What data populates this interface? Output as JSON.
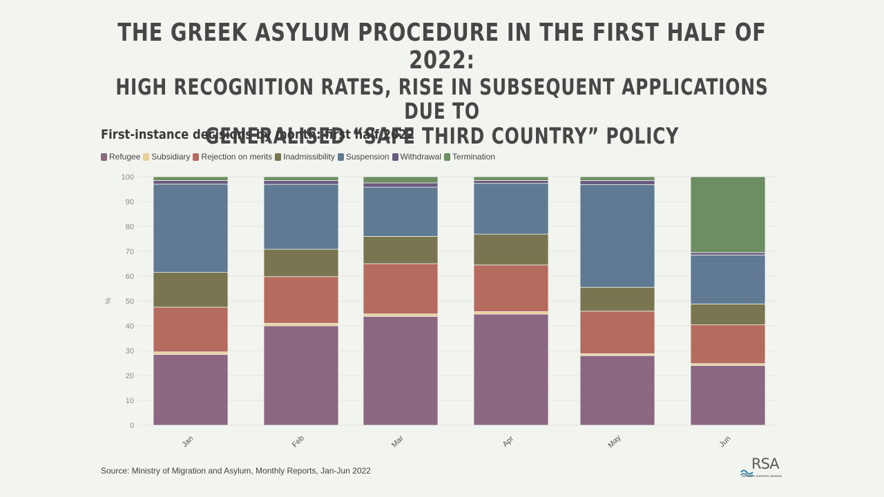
{
  "header": {
    "title_line1": "The Greek asylum procedure in the first half of 2022:",
    "title_line2": "High recognition rates, rise in subsequent applications due to",
    "title_line3": "generalised “safe third country” policy"
  },
  "source": "Source: Ministry of Migration and Asylum, Monthly Reports, Jan-Jun 2022",
  "logo": {
    "text": "RSA",
    "subtitle": "REFUGEE SUPPORT AEGEAN",
    "color": "#2f7fa3"
  },
  "chart_data": {
    "type": "bar",
    "stacked": true,
    "title": "First-instance decisions by month: first half 2022",
    "xlabel": "",
    "ylabel": "%",
    "ylim": [
      0,
      100
    ],
    "yticks": [
      0,
      10,
      20,
      30,
      40,
      50,
      60,
      70,
      80,
      90,
      100
    ],
    "grid": true,
    "legend_position": "top-left",
    "categories": [
      "Jan",
      "Feb",
      "Mar",
      "Apr",
      "May",
      "Jun"
    ],
    "series": [
      {
        "name": "Refugee",
        "color": "#8c6782",
        "values": [
          28.5,
          40.0,
          43.8,
          44.7,
          28.0,
          24.0
        ]
      },
      {
        "name": "Subsidiary",
        "color": "#e8cf9a",
        "values": [
          1.0,
          1.0,
          1.0,
          1.0,
          0.8,
          0.8
        ]
      },
      {
        "name": "Rejection on merits",
        "color": "#b56b5e",
        "values": [
          18.0,
          18.8,
          20.2,
          18.8,
          17.1,
          15.6
        ]
      },
      {
        "name": "Inadmissibility",
        "color": "#797550",
        "values": [
          14.0,
          11.0,
          11.0,
          12.4,
          9.6,
          8.4
        ]
      },
      {
        "name": "Suspension",
        "color": "#5f7a92",
        "values": [
          35.5,
          26.1,
          19.8,
          20.4,
          41.3,
          19.7
        ]
      },
      {
        "name": "Withdrawal",
        "color": "#6a5c80",
        "values": [
          1.5,
          1.6,
          1.7,
          1.2,
          1.7,
          1.0
        ]
      },
      {
        "name": "Termination",
        "color": "#6d8d62",
        "values": [
          1.5,
          1.5,
          2.5,
          1.5,
          1.5,
          30.5
        ]
      }
    ]
  }
}
